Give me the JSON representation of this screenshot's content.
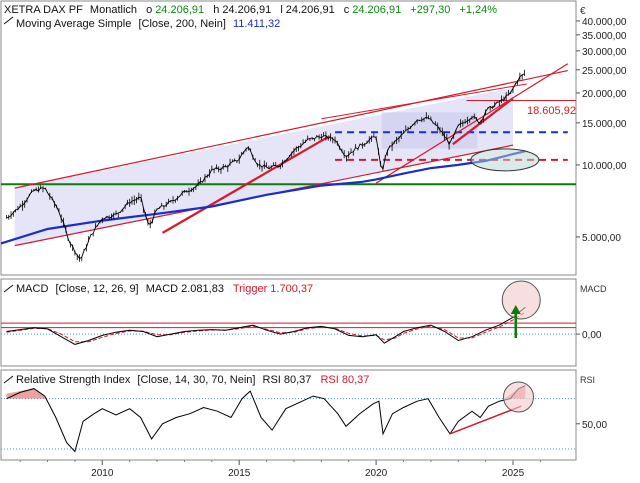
{
  "panels": {
    "price": {
      "legend_instrument": "XETRA DAX PF",
      "legend_interval": "Monatlich",
      "ohlc": [
        {
          "key": "o",
          "value": "24.206,91",
          "color": "#0a8a0a"
        },
        {
          "key": "h",
          "value": "24.206,91",
          "color": "#111111"
        },
        {
          "key": "l",
          "value": "24.206,91",
          "color": "#111111"
        },
        {
          "key": "c",
          "value": "24.206,91",
          "color": "#0a8a0a"
        },
        {
          "key": "",
          "value": "+297,30",
          "color": "#0a8a0a"
        },
        {
          "key": "",
          "value": "+1,24%",
          "color": "#0a8a0a"
        }
      ],
      "ma_label": "Moving Average Simple",
      "ma_params": "[Close, 200, Nein]",
      "ma_value": "11.411,32",
      "axis_unit": "€",
      "annotation_level": "18.605,92"
    },
    "macd": {
      "label": "MACD",
      "params": "[Close, 12, 26, 9]",
      "value_label": "MACD 2.081,83",
      "trigger_label": "Trigger 1.700,37",
      "axis_title": "MACD"
    },
    "rsi": {
      "label": "Relative Strength Index",
      "params": "[Close, 14, 30, 70, Nein]",
      "value_label": "RSI 80,37",
      "value_label_red": "RSI 80,37",
      "axis_title": "RSI"
    }
  },
  "colors": {
    "price": "#000000",
    "ma": "#1a2fc9",
    "trend": "#d8182b",
    "support": "#0a7d0a",
    "channel_fill": "#dcdcf4",
    "macd_signal": "#d8182b",
    "highlight": "#f4c9c9"
  },
  "chart_data": [
    {
      "type": "line",
      "title": "XETRA DAX PF (Monatlich)",
      "yscale": "log",
      "xlim": [
        2006.3,
        2027.3
      ],
      "ylim": [
        3500,
        48000
      ],
      "x_ticks": [
        2010,
        2015,
        2020,
        2025
      ],
      "x_tick_labels": [
        "2010",
        "2015",
        "2020",
        "2025"
      ],
      "y_ticks": [
        5000,
        10000,
        15000,
        20000,
        25000,
        30000,
        35000,
        40000
      ],
      "y_tick_labels": [
        "5.000,00",
        "10.000,00",
        "15.000,00",
        "20.000,00",
        "25.000,00",
        "30.000,00",
        "35.000,00",
        "40.000,00"
      ],
      "series": [
        {
          "name": "Close",
          "x": [
            2006.5,
            2007.0,
            2007.5,
            2007.9,
            2008.4,
            2008.8,
            2009.2,
            2009.6,
            2010.0,
            2010.5,
            2011.0,
            2011.4,
            2011.7,
            2012.0,
            2012.5,
            2013.0,
            2013.5,
            2014.0,
            2014.5,
            2015.0,
            2015.3,
            2015.7,
            2016.1,
            2016.5,
            2017.0,
            2017.5,
            2018.0,
            2018.5,
            2018.9,
            2019.3,
            2019.8,
            2020.0,
            2020.2,
            2020.4,
            2020.7,
            2021.0,
            2021.5,
            2021.9,
            2022.3,
            2022.7,
            2023.0,
            2023.5,
            2023.8,
            2024.0,
            2024.5,
            2024.9,
            2025.2,
            2025.45
          ],
          "y": [
            6000,
            6700,
            7800,
            8000,
            6500,
            4800,
            4000,
            5100,
            6000,
            6200,
            7000,
            7300,
            5500,
            6500,
            7000,
            7700,
            8200,
            9500,
            9800,
            10600,
            12000,
            10000,
            9700,
            10000,
            11500,
            12700,
            13200,
            12800,
            10900,
            11800,
            12800,
            13200,
            9200,
            11500,
            12500,
            13500,
            15500,
            15700,
            14200,
            12200,
            14500,
            16000,
            15000,
            16800,
            18300,
            19800,
            23000,
            24200
          ]
        },
        {
          "name": "Moving Average Simple [Close, 200, Nein]",
          "x": [
            2006.3,
            2008,
            2010,
            2012,
            2014,
            2016,
            2018,
            2019.5,
            2020,
            2021,
            2022,
            2023,
            2024,
            2025,
            2025.45
          ],
          "y": [
            4700,
            5400,
            5850,
            6250,
            6700,
            7500,
            8200,
            8500,
            8700,
            9200,
            9700,
            10000,
            10400,
            11100,
            11411
          ]
        }
      ],
      "levels": [
        {
          "name": "support",
          "value": 8300
        },
        {
          "name": "resistance",
          "value": 13700
        },
        {
          "name": "mid",
          "value": 10500
        },
        {
          "name": "annotation",
          "value": 18605.92
        }
      ]
    },
    {
      "type": "line",
      "title": "MACD [Close, 12, 26, 9]",
      "xlim": [
        2006.3,
        2027.3
      ],
      "ylim": [
        -2400,
        4200
      ],
      "y_ticks": [
        0
      ],
      "y_tick_labels": [
        "0,00"
      ],
      "series": [
        {
          "name": "MACD",
          "x": [
            2006.5,
            2007.5,
            2008.0,
            2008.5,
            2009.0,
            2009.5,
            2010.0,
            2010.5,
            2011.0,
            2011.5,
            2012.0,
            2012.5,
            2013.0,
            2013.5,
            2014.0,
            2014.5,
            2015.0,
            2015.5,
            2016.0,
            2016.5,
            2017.0,
            2017.5,
            2018.0,
            2018.5,
            2019.0,
            2019.5,
            2020.0,
            2020.3,
            2020.7,
            2021.0,
            2021.5,
            2022.0,
            2022.5,
            2023.0,
            2023.5,
            2024.0,
            2024.5,
            2025.0,
            2025.45
          ],
          "y": [
            200,
            500,
            400,
            -200,
            -800,
            -500,
            -100,
            150,
            300,
            200,
            -200,
            0,
            200,
            300,
            350,
            300,
            500,
            700,
            300,
            0,
            200,
            500,
            600,
            400,
            -100,
            -200,
            -50,
            -700,
            -200,
            200,
            500,
            700,
            200,
            -500,
            -200,
            300,
            700,
            1300,
            2081.83
          ]
        },
        {
          "name": "Trigger",
          "x": [
            2006.5,
            2007.5,
            2008.0,
            2008.5,
            2009.0,
            2009.5,
            2010.0,
            2010.5,
            2011.0,
            2011.5,
            2012.0,
            2012.5,
            2013.0,
            2013.5,
            2014.0,
            2014.5,
            2015.0,
            2015.5,
            2016.0,
            2016.5,
            2017.0,
            2017.5,
            2018.0,
            2018.5,
            2019.0,
            2019.5,
            2020.0,
            2020.3,
            2020.7,
            2021.0,
            2021.5,
            2022.0,
            2022.5,
            2023.0,
            2023.5,
            2024.0,
            2024.5,
            2025.0,
            2025.45
          ],
          "y": [
            150,
            450,
            420,
            0,
            -600,
            -600,
            -250,
            50,
            250,
            220,
            -50,
            -50,
            150,
            250,
            320,
            310,
            420,
            620,
            380,
            100,
            150,
            420,
            560,
            450,
            50,
            -150,
            -100,
            -450,
            -300,
            50,
            400,
            620,
            350,
            -300,
            -300,
            150,
            550,
            1100,
            1700.37
          ]
        }
      ],
      "levels": [
        {
          "name": "upper",
          "value": 850
        },
        {
          "name": "lower",
          "value": 500
        }
      ]
    },
    {
      "type": "line",
      "title": "Relative Strength Index [Close, 14, 30, 70, Nein]",
      "xlim": [
        2006.3,
        2027.3
      ],
      "ylim": [
        22,
        92
      ],
      "y_ticks": [
        50
      ],
      "y_tick_labels": [
        "50,00"
      ],
      "series": [
        {
          "name": "RSI",
          "x": [
            2006.5,
            2007.0,
            2007.5,
            2007.9,
            2008.3,
            2008.7,
            2009.0,
            2009.3,
            2009.7,
            2010.0,
            2010.5,
            2011.0,
            2011.4,
            2011.8,
            2012.2,
            2012.7,
            2013.2,
            2013.7,
            2014.2,
            2014.7,
            2015.1,
            2015.4,
            2015.8,
            2016.2,
            2016.7,
            2017.2,
            2017.7,
            2018.1,
            2018.6,
            2018.9,
            2019.4,
            2019.9,
            2020.1,
            2020.25,
            2020.6,
            2021.0,
            2021.5,
            2021.9,
            2022.3,
            2022.7,
            2023.0,
            2023.5,
            2023.8,
            2024.1,
            2024.5,
            2024.9,
            2025.2,
            2025.45
          ],
          "y": [
            70,
            75,
            78,
            72,
            55,
            35,
            28,
            52,
            58,
            62,
            57,
            62,
            55,
            38,
            50,
            55,
            58,
            63,
            60,
            55,
            70,
            76,
            55,
            45,
            62,
            67,
            72,
            70,
            58,
            48,
            58,
            66,
            68,
            42,
            58,
            63,
            68,
            70,
            55,
            42,
            52,
            60,
            55,
            64,
            68,
            70,
            78,
            80.37
          ]
        }
      ],
      "levels": [
        {
          "name": "overbought",
          "value": 70
        },
        {
          "name": "oversold",
          "value": 30
        }
      ]
    }
  ]
}
